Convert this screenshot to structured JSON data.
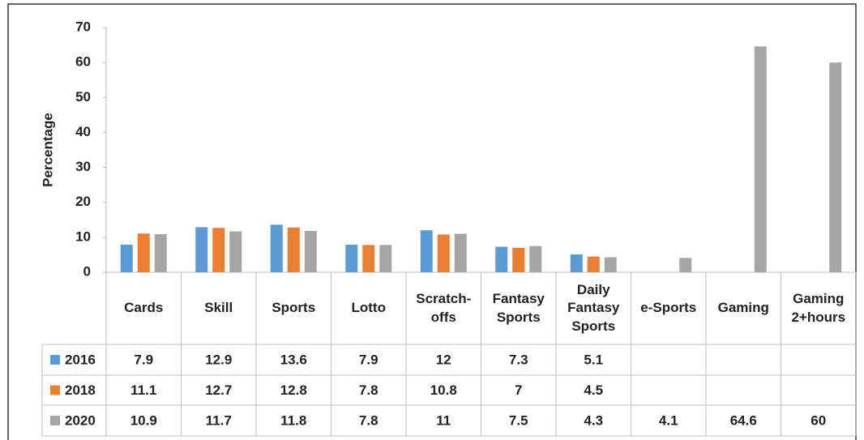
{
  "chart_data": {
    "type": "bar",
    "y_label": "Percentage",
    "categories": [
      "Cards",
      "Skill",
      "Sports",
      "Lotto",
      "Scratch-offs",
      "Fantasy Sports",
      "Daily Fantasy Sports",
      "e-Sports",
      "Gaming",
      "Gaming 2+hours"
    ],
    "series": [
      {
        "name": "2016",
        "color": "#5b9bd5",
        "values": [
          7.9,
          12.9,
          13.6,
          7.9,
          12,
          7.3,
          5.1,
          null,
          null,
          null
        ]
      },
      {
        "name": "2018",
        "color": "#ed7d31",
        "values": [
          11.1,
          12.7,
          12.8,
          7.8,
          10.8,
          7,
          4.5,
          null,
          null,
          null
        ]
      },
      {
        "name": "2020",
        "color": "#a5a5a5",
        "values": [
          10.9,
          11.7,
          11.8,
          7.8,
          11,
          7.5,
          4.3,
          4.1,
          64.6,
          60
        ]
      }
    ],
    "ylim": [
      0,
      70
    ],
    "yticks": [
      0,
      10,
      20,
      30,
      40,
      50,
      60,
      70
    ]
  }
}
